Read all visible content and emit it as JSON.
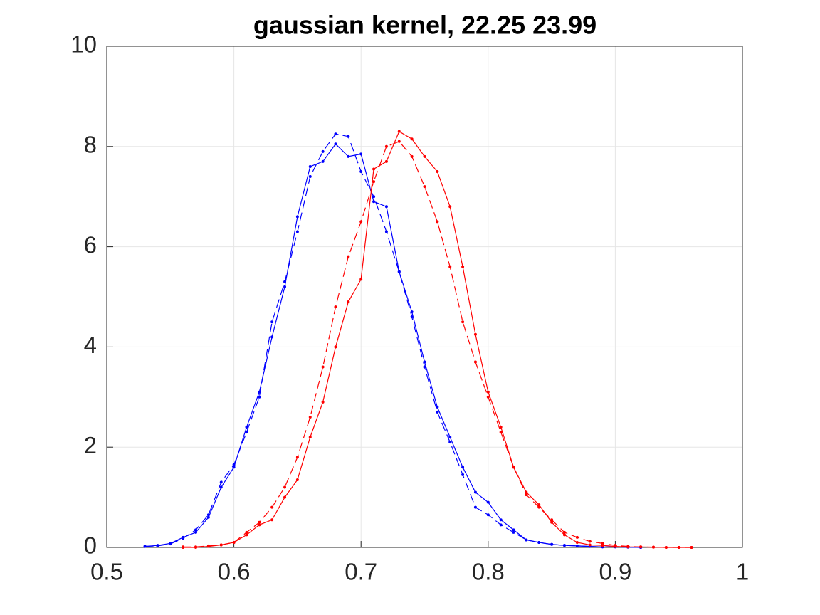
{
  "chart_data": {
    "type": "line",
    "title": "gaussian kernel, 22.25 23.99",
    "xlim": [
      0.5,
      1
    ],
    "xticks": [
      0.5,
      0.6,
      0.7,
      0.8,
      0.9,
      1
    ],
    "ylim": [
      0,
      10
    ],
    "yticks": [
      0,
      2,
      4,
      6,
      8,
      10
    ],
    "grid": true,
    "series": [
      {
        "color": "#0000ff",
        "line_style": "solid",
        "x": [
          0.53,
          0.54,
          0.55,
          0.56,
          0.57,
          0.58,
          0.59,
          0.6,
          0.61,
          0.62,
          0.63,
          0.64,
          0.65,
          0.66,
          0.67,
          0.68,
          0.69,
          0.7,
          0.71,
          0.72,
          0.73,
          0.74,
          0.75,
          0.76,
          0.77,
          0.78,
          0.79,
          0.8,
          0.81,
          0.82,
          0.83,
          0.84,
          0.85,
          0.86,
          0.87,
          0.88,
          0.89,
          0.9,
          0.91,
          0.92
        ],
        "values": [
          0.02,
          0.04,
          0.08,
          0.2,
          0.3,
          0.6,
          1.2,
          1.6,
          2.4,
          3.1,
          4.2,
          5.2,
          6.6,
          7.6,
          7.7,
          8.05,
          7.8,
          7.85,
          6.9,
          6.8,
          5.5,
          4.7,
          3.7,
          2.8,
          2.2,
          1.6,
          1.1,
          0.9,
          0.55,
          0.35,
          0.15,
          0.1,
          0.06,
          0.04,
          0.03,
          0.02,
          0.01,
          0.01,
          0.005,
          0
        ]
      },
      {
        "color": "#0000ff",
        "line_style": "dashed",
        "x": [
          0.53,
          0.54,
          0.55,
          0.56,
          0.57,
          0.58,
          0.59,
          0.6,
          0.61,
          0.62,
          0.63,
          0.64,
          0.65,
          0.66,
          0.67,
          0.68,
          0.69,
          0.7,
          0.71,
          0.72,
          0.73,
          0.74,
          0.75,
          0.76,
          0.77,
          0.78,
          0.79,
          0.8,
          0.81,
          0.82,
          0.83,
          0.84,
          0.85,
          0.86,
          0.87,
          0.88,
          0.89,
          0.9,
          0.91,
          0.92
        ],
        "values": [
          0.02,
          0.03,
          0.07,
          0.18,
          0.35,
          0.65,
          1.3,
          1.65,
          2.3,
          3.0,
          4.5,
          5.3,
          6.3,
          7.4,
          7.9,
          8.25,
          8.2,
          7.5,
          7.0,
          6.3,
          5.5,
          4.6,
          3.6,
          2.7,
          2.1,
          1.45,
          0.8,
          0.65,
          0.45,
          0.3,
          0.15,
          0.1,
          0.06,
          0.04,
          0.03,
          0.02,
          0.01,
          0.01,
          0.005,
          0
        ]
      },
      {
        "color": "#ff0000",
        "line_style": "solid",
        "x": [
          0.56,
          0.57,
          0.58,
          0.59,
          0.6,
          0.61,
          0.62,
          0.63,
          0.64,
          0.65,
          0.66,
          0.67,
          0.68,
          0.69,
          0.7,
          0.71,
          0.72,
          0.73,
          0.74,
          0.75,
          0.76,
          0.77,
          0.78,
          0.79,
          0.8,
          0.81,
          0.82,
          0.83,
          0.84,
          0.85,
          0.86,
          0.87,
          0.88,
          0.89,
          0.9,
          0.91,
          0.92,
          0.93,
          0.94,
          0.95,
          0.96
        ],
        "values": [
          0,
          0,
          0.02,
          0.05,
          0.1,
          0.25,
          0.45,
          0.55,
          1.0,
          1.35,
          2.2,
          2.9,
          4.0,
          4.9,
          5.35,
          7.55,
          7.7,
          8.3,
          8.15,
          7.8,
          7.5,
          6.8,
          5.6,
          4.25,
          3.1,
          2.4,
          1.6,
          1.1,
          0.85,
          0.5,
          0.25,
          0.1,
          0.05,
          0.04,
          0.02,
          0.01,
          0.01,
          0.005,
          0,
          0,
          0
        ]
      },
      {
        "color": "#ff0000",
        "line_style": "dashed",
        "x": [
          0.56,
          0.57,
          0.58,
          0.59,
          0.6,
          0.61,
          0.62,
          0.63,
          0.64,
          0.65,
          0.66,
          0.67,
          0.68,
          0.69,
          0.7,
          0.71,
          0.72,
          0.73,
          0.74,
          0.75,
          0.76,
          0.77,
          0.78,
          0.79,
          0.8,
          0.81,
          0.82,
          0.83,
          0.84,
          0.85,
          0.86,
          0.87,
          0.88,
          0.89,
          0.9,
          0.91,
          0.92,
          0.93,
          0.94,
          0.95,
          0.96
        ],
        "values": [
          0.01,
          0.01,
          0.03,
          0.05,
          0.1,
          0.3,
          0.5,
          0.8,
          1.2,
          1.8,
          2.6,
          3.6,
          4.8,
          5.8,
          6.5,
          7.3,
          8.0,
          8.1,
          7.8,
          7.2,
          6.5,
          5.6,
          4.5,
          3.7,
          3.0,
          2.3,
          1.6,
          1.05,
          0.8,
          0.55,
          0.3,
          0.2,
          0.12,
          0.08,
          0.04,
          0.02,
          0.01,
          0.005,
          0,
          0,
          0
        ]
      }
    ]
  }
}
